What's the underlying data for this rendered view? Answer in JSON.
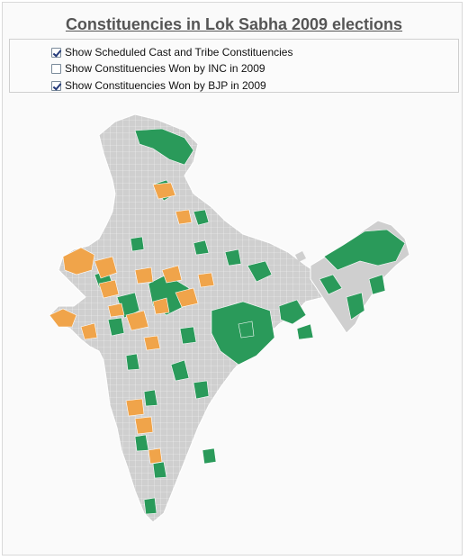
{
  "title": "Constituencies in Lok Sabha 2009 elections",
  "options": [
    {
      "label": "Show Scheduled Cast and Tribe Constituencies",
      "checked": true
    },
    {
      "label": "Show Constituencies Won by INC in 2009",
      "checked": false
    },
    {
      "label": "Show Constituencies Won by BJP in 2009",
      "checked": true
    }
  ],
  "legend_colors": {
    "reserved": "#2a9a5a",
    "bjp": "#f0a44a",
    "other": "#cfcfcf",
    "border": "#ffffff"
  }
}
